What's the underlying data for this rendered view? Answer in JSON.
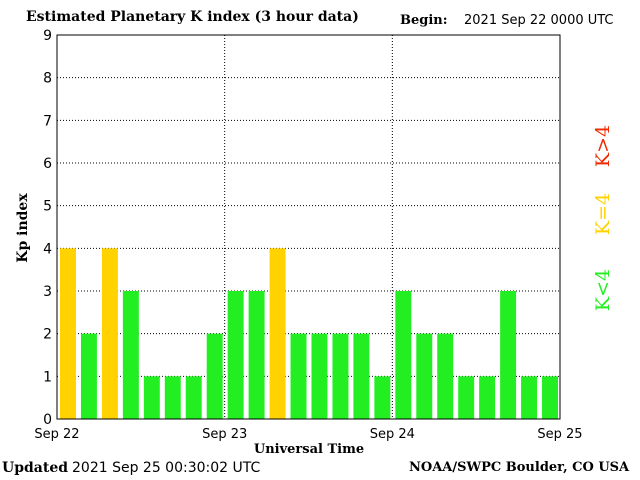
{
  "header": {
    "title": "Estimated Planetary K index (3 hour data)",
    "begin_label": "Begin:",
    "begin_value": "2021 Sep 22 0000 UTC"
  },
  "footer": {
    "updated_label": "Updated",
    "updated_value": "2021 Sep 25 00:30:02 UTC",
    "credit": "NOAA/SWPC Boulder, CO USA"
  },
  "legend": {
    "placement": "right-vertical",
    "items": [
      {
        "label": "K<4",
        "color": "#22ee22"
      },
      {
        "label": "K=4",
        "color": "#ffd200"
      },
      {
        "label": "K>4",
        "color": "#ee2a00"
      }
    ]
  },
  "chart_data": {
    "type": "bar",
    "title": "Estimated Planetary K index (3 hour data)",
    "xlabel": "Universal Time",
    "ylabel": "Kp index",
    "ylim": [
      0,
      9
    ],
    "yticks": [
      0,
      1,
      2,
      3,
      4,
      5,
      6,
      7,
      8,
      9
    ],
    "x_ticks": [
      "Sep 22",
      "Sep 23",
      "Sep 24",
      "Sep 25"
    ],
    "bins_per_day": 8,
    "grid": true,
    "colors": {
      "below": "#22ee22",
      "equal": "#ffd200",
      "above": "#ee2a00"
    },
    "values": [
      4,
      2,
      4,
      3,
      1,
      1,
      1,
      2,
      3,
      3,
      4,
      2,
      2,
      2,
      2,
      1,
      3,
      2,
      2,
      1,
      1,
      3,
      1,
      1
    ]
  }
}
